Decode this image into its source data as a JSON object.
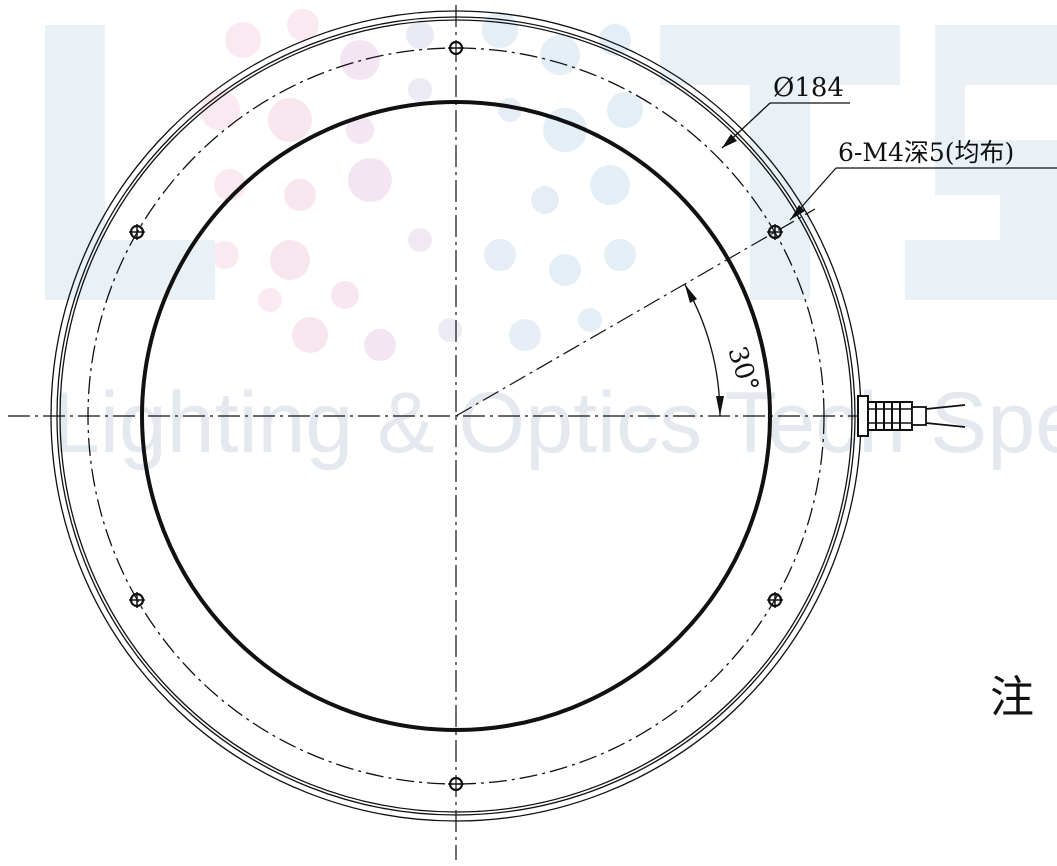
{
  "watermark": {
    "logo_letters": "LOTS",
    "tagline": "Lighting & Optics Tech Specialist"
  },
  "dimensions": {
    "pcd_label": "Ø184",
    "hole_label": "6-M4深5(均布)",
    "angle_label": "30°"
  },
  "note": {
    "label": "注"
  },
  "colors": {
    "line": "#111111",
    "watermark_blue": "#e3ecf4",
    "watermark_pink": "#f8e6ef"
  }
}
